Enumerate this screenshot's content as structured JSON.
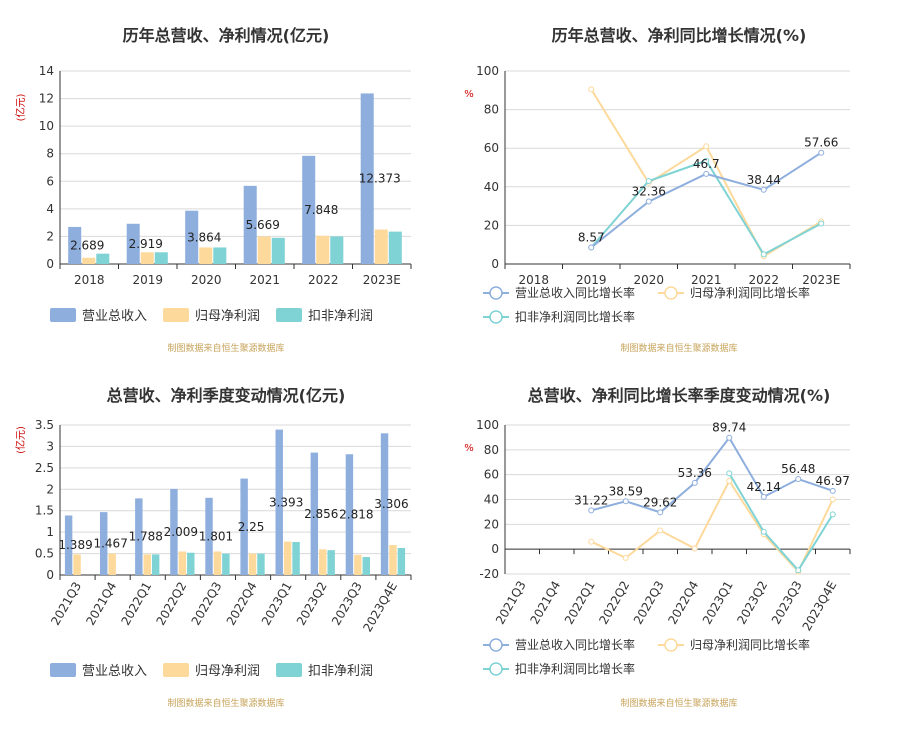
{
  "colors": {
    "revenue": "#8eaedd",
    "netprofit": "#fdd99b",
    "deducted": "#7fd3d5",
    "axis": "#333333",
    "grid": "#d9d9d9",
    "unit": "#cc0000"
  },
  "source_note": "制图数据来自恒生聚源数据库",
  "chart_data": [
    {
      "type": "bar",
      "title": "历年总营收、净利情况(亿元)",
      "ylabel": "亿元",
      "categories": [
        "2018",
        "2019",
        "2020",
        "2021",
        "2022",
        "2023E"
      ],
      "ylim": [
        0,
        14
      ],
      "yticks": [
        0,
        2,
        4,
        6,
        8,
        10,
        12,
        14
      ],
      "series": [
        {
          "name": "营业总收入",
          "values": [
            2.689,
            2.919,
            3.864,
            5.669,
            7.848,
            12.373
          ]
        },
        {
          "name": "归母净利润",
          "values": [
            0.45,
            0.85,
            1.2,
            2.0,
            2.05,
            2.5
          ]
        },
        {
          "name": "扣非净利润",
          "values": [
            0.75,
            0.85,
            1.2,
            1.9,
            2.0,
            2.35
          ]
        }
      ],
      "data_labels": [
        "2.689",
        "2.919",
        "3.864",
        "5.669",
        "7.848",
        "12.373"
      ],
      "legend": "bottom",
      "grid": true
    },
    {
      "type": "line",
      "title": "历年总营收、净利同比增长情况(%)",
      "ylabel": "%",
      "categories": [
        "2018",
        "2019",
        "2020",
        "2021",
        "2022",
        "2023E"
      ],
      "ylim": [
        0,
        100
      ],
      "yticks": [
        0,
        20,
        40,
        60,
        80,
        100
      ],
      "series": [
        {
          "name": "营业总收入同比增长率",
          "values": [
            null,
            8.57,
            32.36,
            46.7,
            38.44,
            57.66
          ]
        },
        {
          "name": "归母净利润同比增长率",
          "values": [
            null,
            90.5,
            42.0,
            61.0,
            4.0,
            22.0
          ]
        },
        {
          "name": "扣非净利润同比增长率",
          "values": [
            null,
            8.57,
            43.0,
            53.5,
            5.0,
            21.0
          ]
        }
      ],
      "data_labels": [
        null,
        "8.57",
        "32.36",
        "46.7",
        "38.44",
        "57.66"
      ],
      "legend": "bottom",
      "grid": true
    },
    {
      "type": "bar",
      "title": "总营收、净利季度变动情况(亿元)",
      "ylabel": "亿元",
      "categories": [
        "2021Q3",
        "2021Q4",
        "2022Q1",
        "2022Q2",
        "2022Q3",
        "2022Q4",
        "2023Q1",
        "2023Q2",
        "2023Q3",
        "2023Q4E"
      ],
      "ylim": [
        0,
        3.5
      ],
      "yticks": [
        "0",
        "0.5",
        "1",
        "1.5",
        "2",
        "2.5",
        "3",
        "3.5"
      ],
      "series": [
        {
          "name": "营业总收入",
          "values": [
            1.389,
            1.467,
            1.788,
            2.009,
            1.801,
            2.25,
            3.393,
            2.856,
            2.818,
            3.306
          ]
        },
        {
          "name": "归母净利润",
          "values": [
            0.48,
            0.5,
            0.48,
            0.55,
            0.55,
            0.5,
            0.78,
            0.6,
            0.47,
            0.7
          ]
        },
        {
          "name": "扣非净利润",
          "values": [
            null,
            null,
            0.48,
            0.52,
            0.5,
            0.5,
            0.77,
            0.58,
            0.42,
            0.63
          ]
        }
      ],
      "data_labels": [
        "1.389",
        "1.467",
        "1.788",
        "2.009",
        "1.801",
        "2.25",
        "3.393",
        "2.856",
        "2.818",
        "3.306"
      ],
      "legend": "bottom",
      "grid": true
    },
    {
      "type": "line",
      "title": "总营收、净利同比增长率季度变动情况(%)",
      "ylabel": "%",
      "categories": [
        "2021Q3",
        "2021Q4",
        "2022Q1",
        "2022Q2",
        "2022Q3",
        "2022Q4",
        "2023Q1",
        "2023Q2",
        "2023Q3",
        "2023Q4E"
      ],
      "ylim": [
        -20,
        100
      ],
      "yticks": [
        -20,
        0,
        20,
        40,
        60,
        80,
        100
      ],
      "series": [
        {
          "name": "营业总收入同比增长率",
          "values": [
            null,
            null,
            31.22,
            38.59,
            29.62,
            53.36,
            89.74,
            42.14,
            56.48,
            46.97
          ]
        },
        {
          "name": "归母净利润同比增长率",
          "values": [
            null,
            null,
            6.0,
            -7.0,
            15.0,
            0.5,
            55.0,
            12.0,
            -18.0,
            40.0
          ]
        },
        {
          "name": "扣非净利润同比增长率",
          "values": [
            null,
            null,
            null,
            null,
            null,
            null,
            61.0,
            14.0,
            -17.0,
            28.0
          ]
        }
      ],
      "data_labels": [
        null,
        null,
        "31.22",
        "38.59",
        "29.62",
        "53.36",
        "89.74",
        "42.14",
        "56.48",
        "46.97"
      ],
      "legend": "bottom",
      "grid": true
    }
  ]
}
